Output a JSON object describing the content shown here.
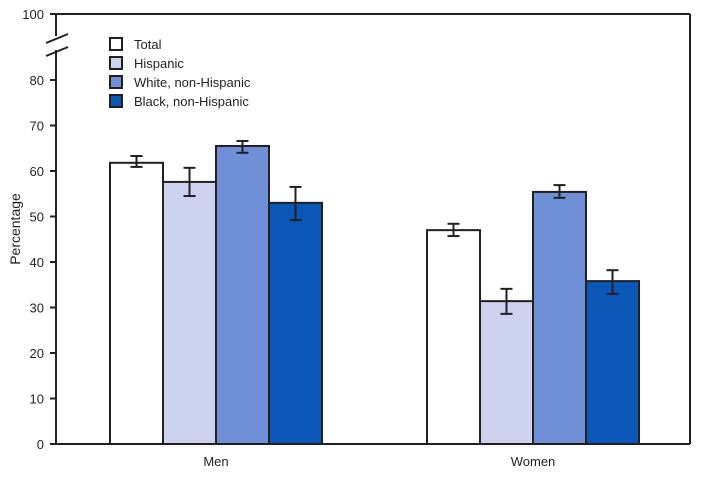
{
  "chart_data": {
    "type": "bar",
    "title": "",
    "xlabel": "",
    "ylabel": "Percentage",
    "ylim": [
      0,
      100
    ],
    "axis_break": "between 80 and 100",
    "yticks": [
      0,
      10,
      20,
      30,
      40,
      50,
      60,
      70,
      80,
      100
    ],
    "categories": [
      "Men",
      "Women"
    ],
    "legend_position": "top-left",
    "series": [
      {
        "name": "Total",
        "color": "#ffffff",
        "values": [
          61.8,
          47.0
        ],
        "ci_low": [
          60.9,
          45.7
        ],
        "ci_high": [
          63.3,
          48.4
        ]
      },
      {
        "name": "Hispanic",
        "color": "#cdd3ee",
        "values": [
          57.6,
          31.4
        ],
        "ci_low": [
          54.5,
          28.6
        ],
        "ci_high": [
          60.7,
          34.1
        ]
      },
      {
        "name": "White, non-Hispanic",
        "color": "#6f8fd6",
        "values": [
          65.5,
          55.4
        ],
        "ci_low": [
          64.0,
          54.1
        ],
        "ci_high": [
          66.6,
          56.9
        ]
      },
      {
        "name": "Black, non-Hispanic",
        "color": "#0b57b8",
        "values": [
          53.0,
          35.8
        ],
        "ci_low": [
          49.2,
          33.0
        ],
        "ci_high": [
          56.5,
          38.2
        ]
      }
    ]
  }
}
